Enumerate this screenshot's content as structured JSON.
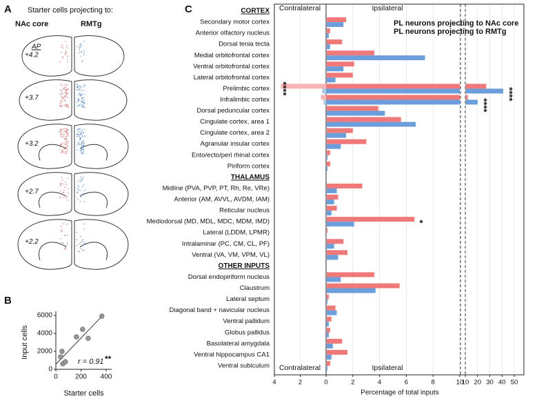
{
  "figure": {
    "panel_a": {
      "letter": "A",
      "title": "Starter cells projecting to:",
      "groups": [
        {
          "name": "NAc core",
          "color": "#e07272"
        },
        {
          "name": "RMTg",
          "color": "#5b8fd0"
        }
      ],
      "ap_label": "AP",
      "levels": [
        "+4.2",
        "+3.7",
        "+3.2",
        "+2.7",
        "+2.2"
      ]
    }
  },
  "chart_data": [
    {
      "type": "scatter",
      "letter": "B",
      "x_label": "Starter cells",
      "y_label": "Input cells",
      "x": [
        38,
        55,
        76,
        49,
        164,
        213,
        257,
        366
      ],
      "y": [
        1385,
        615,
        846,
        2000,
        3615,
        4460,
        3460,
        5920
      ],
      "color": "#999999",
      "xlim": [
        0,
        400
      ],
      "xticks": [
        0,
        200,
        400
      ],
      "ylim": [
        0,
        6000
      ],
      "yticks": [
        0,
        2000,
        4000,
        6000
      ],
      "trendline": true,
      "annotation": "r = 0.91",
      "significance": "**"
    },
    {
      "type": "bar",
      "orientation": "horizontal",
      "letter": "C",
      "headers": [
        "CORTEX",
        "THALAMUS",
        "OTHER INPUTS"
      ],
      "categories": [
        "CORTEX",
        "Secondary motor cortex",
        "Anterior olfactory nucleus",
        "Dorsal tenia tecta",
        "Medial orbitofrontal cortex",
        "Ventral orbitofrontal cortex",
        "Lateral orbitofrontal cortex",
        "Prelimbic cortex",
        "Infralimbic cortex",
        "Dorsal peduncular cortex",
        "Cingulate cortex, area 1",
        "Cingulate cortex, area 2",
        "Agranular insular cortex",
        "Ento/ecto/peri rhinal cortex",
        "Piriform cortex",
        "THALAMUS",
        "Midline (PVA, PVP, PT, Rh, Re, VRe)",
        "Anterior (AM, AVVL, AVDM, IAM)",
        "Reticular nucleus",
        "Mediodorsal (MD, MDL, MDC, MDM, IMD)",
        "Lateral (LDDM, LPMR)",
        "Intralaminar (PC, CM, CL, PF)",
        "Ventral (VA, VM, VPM, VL)",
        "OTHER INPUTS",
        "Dorsal endopiriform nucleus",
        "Claustrum",
        "Lateral septum",
        "Diagonal band + navicular nucleus",
        "Ventral pallidum",
        "Globus pallidus",
        "Basolateral amygdala",
        "Ventral hippocampus CA1",
        "Ventral subiculum"
      ],
      "series": [
        {
          "name": "PL neurons projecting to NAc core",
          "color": "#ef7878",
          "contra_color": "#f6b4b4",
          "values": [
            null,
            1.5,
            0.3,
            1.2,
            3.6,
            2.1,
            2.0,
            27,
            12,
            3.9,
            5.6,
            2.0,
            3.0,
            0.3,
            0.3,
            null,
            2.7,
            0.9,
            0.8,
            6.6,
            0.1,
            1.3,
            1.6,
            null,
            3.6,
            5.5,
            0.2,
            0.7,
            0.4,
            0.3,
            1.2,
            1.6,
            0.3
          ],
          "contralateral": [
            null,
            null,
            null,
            null,
            null,
            null,
            null,
            3.5,
            0.4,
            null,
            null,
            null,
            null,
            null,
            null,
            null,
            null,
            null,
            null,
            null,
            null,
            null,
            null,
            null,
            null,
            null,
            null,
            null,
            null,
            null,
            null,
            null,
            null
          ]
        },
        {
          "name": "PL neurons projecting to RMTg",
          "color": "#6b9edb",
          "contra_color": "#aac7ec",
          "values": [
            null,
            1.3,
            0.2,
            0.3,
            7.4,
            1.3,
            0.7,
            41,
            20,
            4.4,
            6.7,
            1.5,
            1.1,
            0.1,
            0.1,
            null,
            0.8,
            0.6,
            0.4,
            2.1,
            0.05,
            0.6,
            0.9,
            null,
            1.1,
            3.7,
            0.1,
            0.8,
            0.2,
            0.2,
            0.5,
            0.4,
            0.1
          ],
          "contralateral": [
            null,
            null,
            null,
            null,
            null,
            null,
            null,
            0.3,
            0.2,
            null,
            null,
            null,
            null,
            null,
            null,
            null,
            null,
            null,
            null,
            null,
            null,
            null,
            null,
            null,
            null,
            null,
            null,
            null,
            null,
            null,
            null,
            null,
            null
          ]
        }
      ],
      "side_labels": [
        "Contralateral",
        "Ipsilateral"
      ],
      "x_label": "Percentage of total inputs",
      "xlim_contra": [
        4,
        0
      ],
      "xticks_contra": [
        4,
        2
      ],
      "xlim": [
        0,
        10
      ],
      "xticks": [
        0,
        2,
        4,
        6,
        8,
        10
      ],
      "xlim_break": [
        10,
        50
      ],
      "xticks_break": [
        10,
        20,
        30,
        40,
        50
      ],
      "grid": true,
      "annotations": [
        {
          "text": "****",
          "category": "Prelimbic cortex",
          "side": "contralateral",
          "vertical": true
        },
        {
          "text": "****",
          "category": "Prelimbic cortex",
          "side": "ipsilateral",
          "vertical": true
        },
        {
          "text": "****",
          "category": "Infralimbic cortex",
          "side": "ipsilateral",
          "vertical": true
        },
        {
          "text": "*",
          "category": "Mediodorsal (MD, MDL, MDC, MDM, IMD)",
          "side": "ipsilateral",
          "vertical": false
        }
      ]
    }
  ]
}
